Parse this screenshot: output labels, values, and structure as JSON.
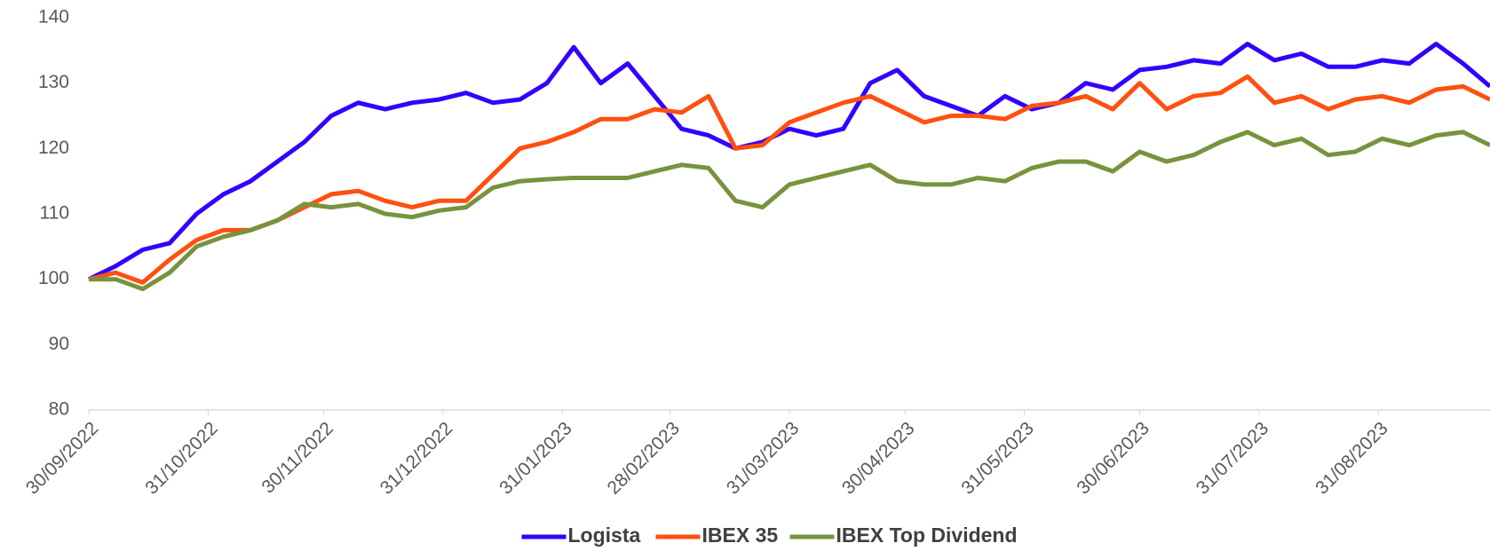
{
  "chart_data": {
    "type": "line",
    "x": [
      "2022-09-30",
      "2022-10-07",
      "2022-10-14",
      "2022-10-21",
      "2022-10-28",
      "2022-11-04",
      "2022-11-11",
      "2022-11-18",
      "2022-11-25",
      "2022-12-02",
      "2022-12-09",
      "2022-12-16",
      "2022-12-23",
      "2022-12-30",
      "2023-01-06",
      "2023-01-13",
      "2023-01-20",
      "2023-01-27",
      "2023-02-03",
      "2023-02-10",
      "2023-02-17",
      "2023-02-24",
      "2023-03-03",
      "2023-03-10",
      "2023-03-17",
      "2023-03-24",
      "2023-03-31",
      "2023-04-07",
      "2023-04-14",
      "2023-04-21",
      "2023-04-28",
      "2023-05-05",
      "2023-05-12",
      "2023-05-19",
      "2023-05-26",
      "2023-06-02",
      "2023-06-09",
      "2023-06-16",
      "2023-06-23",
      "2023-06-30",
      "2023-07-07",
      "2023-07-14",
      "2023-07-21",
      "2023-07-28",
      "2023-08-04",
      "2023-08-11",
      "2023-08-18",
      "2023-08-25",
      "2023-09-01",
      "2023-09-08",
      "2023-09-15",
      "2023-09-22",
      "2023-09-29"
    ],
    "series": [
      {
        "name": "Logista",
        "color": "#3300ff",
        "values": [
          100,
          102,
          104.5,
          105.5,
          110,
          113,
          115,
          118,
          121,
          125,
          127,
          126,
          127,
          127.5,
          128.5,
          127,
          127.5,
          130,
          135.5,
          130,
          133,
          128,
          123,
          122,
          120,
          121,
          123,
          122,
          123,
          130,
          132,
          128,
          126.5,
          125,
          128,
          126,
          127,
          130,
          129,
          132,
          132.5,
          133.5,
          133,
          136,
          133.5,
          134.5,
          132.5,
          132.5,
          133.5,
          133,
          136,
          133,
          129.5
        ]
      },
      {
        "name": "IBEX 35",
        "color": "#ff5010",
        "values": [
          100,
          101,
          99.5,
          103,
          106,
          107.5,
          107.5,
          109,
          111,
          113,
          113.5,
          112,
          111,
          112,
          112,
          116,
          120,
          121,
          122.5,
          124.5,
          124.5,
          126,
          125.5,
          128,
          120,
          120.5,
          124,
          125.5,
          127,
          128,
          126,
          124,
          125,
          125,
          124.5,
          126.5,
          127,
          128,
          126,
          130,
          126,
          128,
          128.5,
          131,
          127,
          128,
          126,
          127.5,
          128,
          127,
          129,
          129.5,
          127.5
        ]
      },
      {
        "name": "IBEX Top Dividend",
        "color": "#77933c",
        "values": [
          100,
          100,
          98.5,
          101,
          105,
          106.5,
          107.5,
          109,
          111.5,
          111,
          111.5,
          110,
          109.5,
          110.5,
          111,
          114,
          115,
          115.3,
          115.5,
          115.5,
          115.5,
          116.5,
          117.5,
          117,
          112,
          111,
          114.5,
          115.5,
          116.5,
          117.5,
          115,
          114.5,
          114.5,
          115.5,
          115,
          117,
          118,
          118,
          116.5,
          119.5,
          118,
          119,
          121,
          122.5,
          120.5,
          121.5,
          119,
          119.5,
          121.5,
          120.5,
          122,
          122.5,
          120.5
        ]
      }
    ],
    "xlim": [
      "2022-09-30",
      "2023-09-29"
    ],
    "xticks": [
      {
        "value": "2022-09-30",
        "label": "30/09/2022"
      },
      {
        "value": "2022-10-31",
        "label": "31/10/2022"
      },
      {
        "value": "2022-11-30",
        "label": "30/11/2022"
      },
      {
        "value": "2022-12-31",
        "label": "31/12/2022"
      },
      {
        "value": "2023-01-31",
        "label": "31/01/2023"
      },
      {
        "value": "2023-02-28",
        "label": "28/02/2023"
      },
      {
        "value": "2023-03-31",
        "label": "31/03/2023"
      },
      {
        "value": "2023-04-30",
        "label": "30/04/2023"
      },
      {
        "value": "2023-05-31",
        "label": "31/05/2023"
      },
      {
        "value": "2023-06-30",
        "label": "30/06/2023"
      },
      {
        "value": "2023-07-31",
        "label": "31/07/2023"
      },
      {
        "value": "2023-08-31",
        "label": "31/08/2023"
      }
    ],
    "ylim": [
      80,
      140
    ],
    "yticks": [
      80,
      90,
      100,
      110,
      120,
      130,
      140
    ],
    "grid": false,
    "legend": "bottom"
  }
}
